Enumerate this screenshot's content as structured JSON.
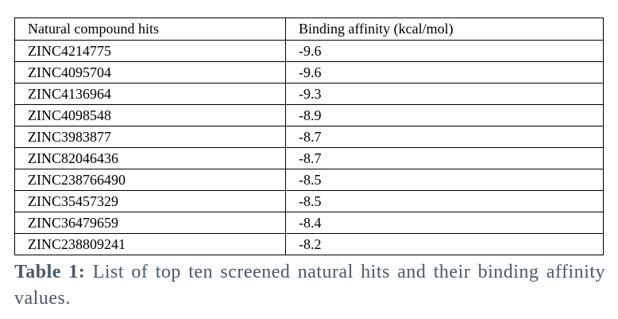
{
  "table": {
    "header": [
      "Natural compound hits",
      "Binding affinity (kcal/mol)"
    ],
    "rows": [
      [
        "ZINC4214775",
        -9.6
      ],
      [
        "ZINC4095704",
        -9.6
      ],
      [
        "ZINC4136964",
        -9.3
      ],
      [
        "ZINC4098548",
        -8.9
      ],
      [
        "ZINC3983877",
        -8.7
      ],
      [
        "ZINC82046436",
        -8.7
      ],
      [
        "ZINC238766490",
        -8.5
      ],
      [
        "ZINC35457329",
        -8.5
      ],
      [
        "ZINC36479659",
        -8.4
      ],
      [
        "ZINC238809241",
        -8.2
      ]
    ]
  },
  "caption": {
    "label": "Table 1:",
    "text": "List of top ten screened natural hits and their binding affinity values."
  }
}
